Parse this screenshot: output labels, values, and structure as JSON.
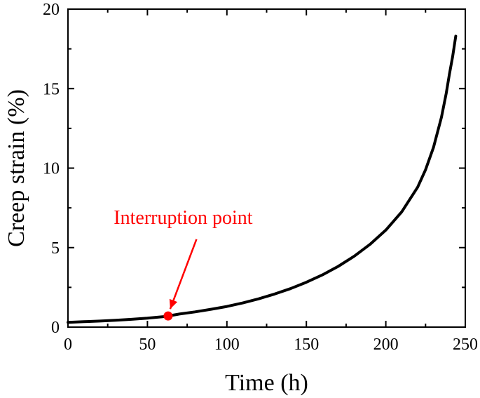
{
  "chart_data": {
    "type": "line",
    "title": "",
    "xlabel": "Time (h)",
    "ylabel": "Creep strain (%)",
    "xlim": [
      0,
      250
    ],
    "ylim": [
      0,
      20
    ],
    "xticks": [
      0,
      50,
      100,
      150,
      200,
      250
    ],
    "yticks": [
      0,
      5,
      10,
      15,
      20
    ],
    "xtick_labels": [
      "0",
      "50",
      "100",
      "150",
      "200",
      "250"
    ],
    "ytick_labels": [
      "0",
      "5",
      "10",
      "15",
      "20"
    ],
    "grid": false,
    "legend": "none",
    "series": [
      {
        "color": "#000000",
        "x": [
          0,
          10,
          20,
          30,
          40,
          50,
          60,
          63,
          70,
          80,
          90,
          100,
          110,
          120,
          130,
          140,
          150,
          160,
          170,
          180,
          190,
          200,
          210,
          220,
          225,
          230,
          235,
          238,
          240,
          242,
          244
        ],
        "y": [
          0.3,
          0.34,
          0.38,
          0.43,
          0.49,
          0.56,
          0.66,
          0.7,
          0.82,
          0.96,
          1.12,
          1.3,
          1.52,
          1.78,
          2.08,
          2.42,
          2.82,
          3.28,
          3.82,
          4.45,
          5.2,
          6.1,
          7.25,
          8.8,
          9.9,
          11.3,
          13.2,
          14.7,
          15.9,
          17.0,
          18.3
        ]
      }
    ],
    "annotations": [
      {
        "text": "Interruption point",
        "color": "#ff0000",
        "point": {
          "x": 63,
          "y": 0.7
        },
        "text_anchor_data": {
          "x": 72.5,
          "y": 6.5
        }
      }
    ]
  }
}
